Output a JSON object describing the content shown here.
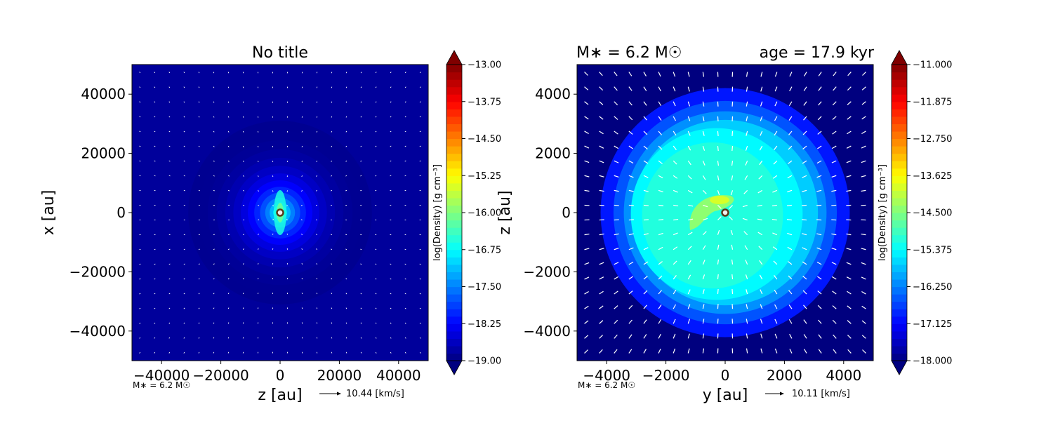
{
  "chart_data": [
    {
      "type": "heatmap",
      "title": "No title",
      "xlabel": "z [au]",
      "ylabel": "x [au]",
      "xlim": [
        -50000,
        50000
      ],
      "ylim": [
        -50000,
        50000
      ],
      "x_ticks": [
        -40000,
        -20000,
        0,
        20000,
        40000
      ],
      "y_ticks": [
        -40000,
        -20000,
        0,
        20000,
        40000
      ],
      "x_tick_labels": [
        "−40000",
        "−20000",
        "0",
        "20000",
        "40000"
      ],
      "y_tick_labels": [
        "−40000",
        "−20000",
        "0",
        "20000",
        "40000"
      ],
      "colorbar": {
        "label": "log(Density) [g cm⁻³]",
        "range": [
          -19.0,
          -13.0
        ],
        "ticks": [
          -13.0,
          -13.75,
          -14.5,
          -15.25,
          -16.0,
          -16.75,
          -17.5,
          -18.25,
          -19.0
        ],
        "tick_labels": [
          "−13.00",
          "−13.75",
          "−14.50",
          "−15.25",
          "−16.00",
          "−16.75",
          "−17.50",
          "−18.25",
          "−19.00"
        ],
        "extend": "both",
        "colormap": "jet"
      },
      "density_peak": -16.2,
      "density_background": -18.9,
      "core_radius": 2500,
      "envelope_radius": 30000,
      "sink_position": [
        0,
        0
      ],
      "mass_label": "M∗ = 6.2 M☉",
      "velocity_key": "10.44 [km/s]",
      "quiver_count": 20
    },
    {
      "type": "heatmap",
      "title_left": "M∗ = 6.2 M☉",
      "title_right": "age = 17.9 kyr",
      "xlabel": "y [au]",
      "ylabel": "z [au]",
      "xlim": [
        -5000,
        5000
      ],
      "ylim": [
        -5000,
        5000
      ],
      "x_ticks": [
        -4000,
        -2000,
        0,
        2000,
        4000
      ],
      "y_ticks": [
        -4000,
        -2000,
        0,
        2000,
        4000
      ],
      "x_tick_labels": [
        "−4000",
        "−2000",
        "0",
        "2000",
        "4000"
      ],
      "y_tick_labels": [
        "−4000",
        "−2000",
        "0",
        "2000",
        "4000"
      ],
      "colorbar": {
        "label": "log(Density) [g cm⁻³]",
        "range": [
          -18.0,
          -11.0
        ],
        "ticks": [
          -11.0,
          -11.875,
          -12.75,
          -13.625,
          -14.5,
          -15.375,
          -16.25,
          -17.125,
          -18.0
        ],
        "tick_labels": [
          "−11.000",
          "−11.875",
          "−12.750",
          "−13.625",
          "−14.500",
          "−15.375",
          "−16.250",
          "−17.125",
          "−18.000"
        ],
        "extend": "both",
        "colormap": "jet"
      },
      "density_peak": -14.4,
      "density_envelope": -15.4,
      "density_background": -17.5,
      "envelope_radius": 2900,
      "sink_position": [
        0,
        0
      ],
      "mass_label": "M∗ = 6.2 M☉",
      "velocity_key": "10.11 [km/s]",
      "quiver_count": 20
    }
  ]
}
